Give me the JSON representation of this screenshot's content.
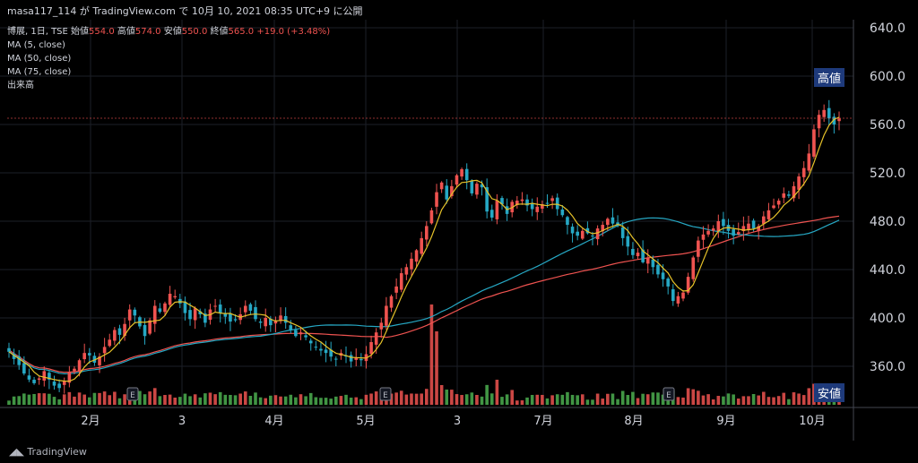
{
  "topbar": {
    "text": "masa117_114 が TradingView.com で 10月 10, 2021 08:35 UTC+9 に公開"
  },
  "legend": {
    "symbol": "博展, 1日, TSE",
    "open_label": "始値",
    "open": "554.0",
    "high_label": "高値",
    "high": "574.0",
    "low_label": "安値",
    "low": "550.0",
    "close_label": "終値",
    "close": "565.0",
    "change": "+19.0 (+3.48%)",
    "ma1": "MA (5, close)",
    "ma2": "MA (50, close)",
    "ma3": "MA (75, close)",
    "volume": "出来高"
  },
  "tags": {
    "high": "高値",
    "low": "安値"
  },
  "footer": {
    "logo": "TradingView"
  },
  "colors": {
    "up": "#ef5350",
    "down": "#26a8c4",
    "ma5": "#e6c229",
    "ma50": "#26a8c4",
    "ma75": "#ef5350",
    "volUp": "#ef5350",
    "volDown": "#4caf50"
  },
  "chart_data": {
    "type": "candlestick",
    "yticks": [
      "640.0",
      "600.0",
      "560.0",
      "520.0",
      "480.0",
      "440.0",
      "400.0",
      "360.0"
    ],
    "ylim": [
      324,
      652
    ],
    "xticks": [
      "2月",
      "3",
      "4月",
      "5月",
      "3",
      "7月",
      "8月",
      "9月",
      "10月"
    ],
    "earnings_markers": [
      "E",
      "E",
      "E"
    ],
    "last_close": 565.0,
    "closes": [
      372,
      366,
      361,
      354,
      349,
      346,
      350,
      356,
      349,
      344,
      342,
      348,
      355,
      358,
      365,
      371,
      369,
      363,
      368,
      376,
      382,
      390,
      386,
      395,
      407,
      402,
      393,
      385,
      398,
      410,
      405,
      412,
      420,
      418,
      412,
      404,
      399,
      408,
      403,
      396,
      407,
      410,
      404,
      401,
      397,
      398,
      403,
      410,
      406,
      399,
      396,
      400,
      394,
      398,
      402,
      396,
      390,
      385,
      388,
      384,
      379,
      376,
      373,
      371,
      368,
      366,
      371,
      368,
      364,
      367,
      365,
      370,
      380,
      388,
      396,
      410,
      418,
      426,
      437,
      442,
      449,
      456,
      466,
      476,
      489,
      504,
      512,
      498,
      509,
      518,
      523,
      514,
      503,
      511,
      508,
      488,
      483,
      497,
      494,
      486,
      496,
      497,
      498,
      493,
      490,
      492,
      494,
      495,
      499,
      490,
      485,
      477,
      470,
      468,
      472,
      470,
      468,
      474,
      477,
      482,
      478,
      476,
      466,
      459,
      452,
      454,
      446,
      450,
      442,
      436,
      432,
      426,
      414,
      418,
      421,
      434,
      450,
      464,
      469,
      472,
      474,
      480,
      476,
      472,
      468,
      471,
      476,
      478,
      474,
      476,
      484,
      489,
      493,
      497,
      503,
      501,
      509,
      517,
      524,
      536,
      556,
      568,
      572,
      565,
      560,
      565
    ]
  }
}
